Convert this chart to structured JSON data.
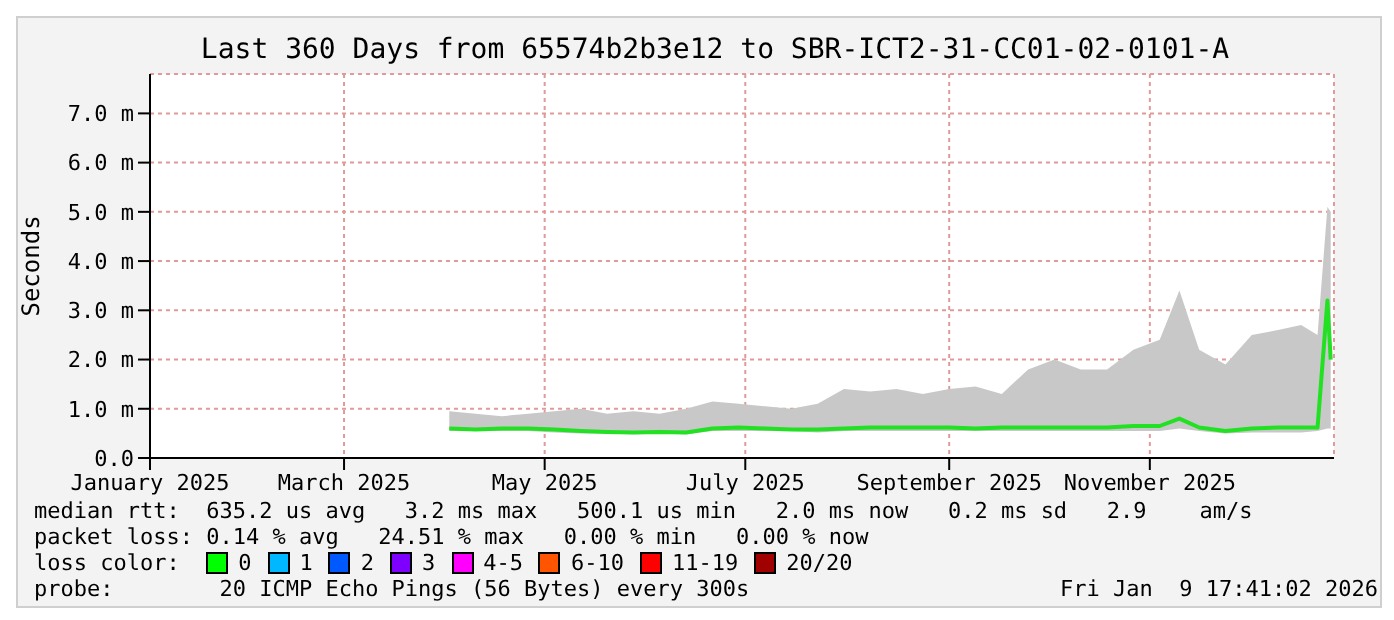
{
  "chart_data": {
    "type": "line",
    "title": "Last 360 Days from 65574b2b3e12 to SBR-ICT2-31-CC01-02-0101-A",
    "ylabel": "Seconds",
    "x": [
      "2025-04-02",
      "2025-04-10",
      "2025-04-18",
      "2025-04-26",
      "2025-05-04",
      "2025-05-12",
      "2025-05-20",
      "2025-05-28",
      "2025-06-05",
      "2025-06-13",
      "2025-06-21",
      "2025-06-29",
      "2025-07-07",
      "2025-07-15",
      "2025-07-23",
      "2025-07-31",
      "2025-08-08",
      "2025-08-16",
      "2025-08-24",
      "2025-09-01",
      "2025-09-09",
      "2025-09-17",
      "2025-09-25",
      "2025-10-03",
      "2025-10-11",
      "2025-10-19",
      "2025-10-27",
      "2025-11-04",
      "2025-11-10",
      "2025-11-16",
      "2025-11-24",
      "2025-12-02",
      "2025-12-10",
      "2025-12-17",
      "2025-12-22",
      "2025-12-25",
      "2025-12-26"
    ],
    "series": [
      {
        "color": "#22e022",
        "values": [
          0.6,
          0.58,
          0.6,
          0.6,
          0.58,
          0.55,
          0.53,
          0.52,
          0.53,
          0.52,
          0.6,
          0.62,
          0.6,
          0.58,
          0.58,
          0.6,
          0.62,
          0.62,
          0.62,
          0.62,
          0.6,
          0.62,
          0.62,
          0.62,
          0.62,
          0.62,
          0.65,
          0.65,
          0.8,
          0.62,
          0.55,
          0.6,
          0.62,
          0.62,
          0.62,
          3.2,
          2.0
        ],
        "lower": [
          0.55,
          0.55,
          0.55,
          0.55,
          0.52,
          0.5,
          0.5,
          0.48,
          0.5,
          0.48,
          0.55,
          0.55,
          0.55,
          0.55,
          0.52,
          0.55,
          0.55,
          0.55,
          0.55,
          0.55,
          0.55,
          0.55,
          0.55,
          0.55,
          0.55,
          0.55,
          0.55,
          0.55,
          0.6,
          0.55,
          0.5,
          0.52,
          0.52,
          0.52,
          0.55,
          0.6,
          0.6
        ],
        "upper": [
          0.95,
          0.9,
          0.85,
          0.9,
          0.95,
          1.0,
          0.9,
          0.95,
          0.9,
          1.0,
          1.15,
          1.1,
          1.05,
          1.0,
          1.1,
          1.4,
          1.35,
          1.4,
          1.3,
          1.4,
          1.45,
          1.3,
          1.8,
          2.0,
          1.8,
          1.8,
          2.2,
          2.4,
          3.4,
          2.2,
          1.9,
          2.5,
          2.6,
          2.7,
          2.5,
          5.1,
          5.0
        ]
      }
    ],
    "xlim": [
      "2025-01-01",
      "2025-12-27"
    ],
    "xticks": [
      {
        "value": "2025-01-01",
        "label": "January 2025"
      },
      {
        "value": "2025-03-01",
        "label": "March 2025"
      },
      {
        "value": "2025-05-01",
        "label": "May 2025"
      },
      {
        "value": "2025-07-01",
        "label": "July 2025"
      },
      {
        "value": "2025-09-01",
        "label": "September 2025"
      },
      {
        "value": "2025-11-01",
        "label": "November 2025"
      }
    ],
    "ylim": [
      0,
      7.8
    ],
    "yticks": [
      {
        "value": 0,
        "label": "0.0"
      },
      {
        "value": 1,
        "label": "1.0 m"
      },
      {
        "value": 2,
        "label": "2.0 m"
      },
      {
        "value": 3,
        "label": "3.0 m"
      },
      {
        "value": 4,
        "label": "4.0 m"
      },
      {
        "value": 5,
        "label": "5.0 m"
      },
      {
        "value": 6,
        "label": "6.0 m"
      },
      {
        "value": 7,
        "label": "7.0 m"
      }
    ],
    "grid": true,
    "marker": "none",
    "line_style": "solid",
    "annotations": [
      "median rtt:  635.2 us avg   3.2 ms max   500.1 us min   2.0 ms now   0.2 ms sd   2.9    am/s",
      "packet loss: 0.14 % avg   24.51 % max   0.00 % min   0.00 % now",
      "loss color:",
      "0",
      "1",
      "2",
      "3",
      "4-5",
      "6-10",
      "11-19",
      "20/20",
      "probe:        20 ICMP Echo Pings (56 Bytes) every 300s",
      "Fri Jan  9 17:41:02 2026"
    ]
  }
}
